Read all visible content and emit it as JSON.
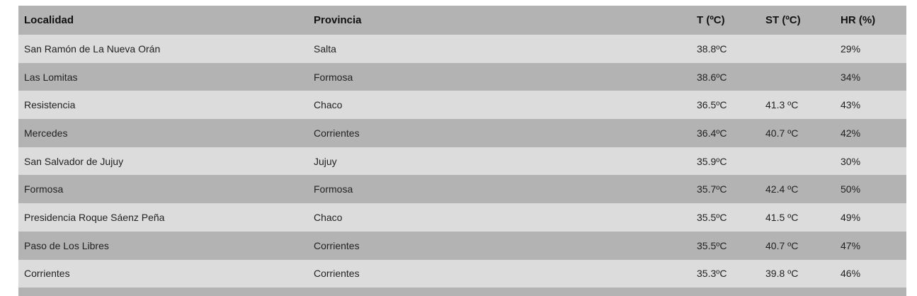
{
  "headers": [
    "Localidad",
    "Provincia",
    "T (ºC)",
    "ST (ºC)",
    "HR (%)"
  ],
  "rows": [
    [
      "San Ramón de La Nueva Orán",
      "Salta",
      "38.8ºC",
      "",
      "29%"
    ],
    [
      "Las Lomitas",
      "Formosa",
      "38.6ºC",
      "",
      "34%"
    ],
    [
      "Resistencia",
      "Chaco",
      "36.5ºC",
      "41.3 ºC",
      "43%"
    ],
    [
      "Mercedes",
      "Corrientes",
      "36.4ºC",
      "40.7 ºC",
      "42%"
    ],
    [
      "San Salvador de Jujuy",
      "Jujuy",
      "35.9ºC",
      "",
      "30%"
    ],
    [
      "Formosa",
      "Formosa",
      "35.7ºC",
      "42.4 ºC",
      "50%"
    ],
    [
      "Presidencia Roque Sáenz Peña",
      "Chaco",
      "35.5ºC",
      "41.5 ºC",
      "49%"
    ],
    [
      "Paso de Los Libres",
      "Corrientes",
      "35.5ºC",
      "40.7 ºC",
      "47%"
    ],
    [
      "Corrientes",
      "Corrientes",
      "35.3ºC",
      "39.8 ºC",
      "46%"
    ]
  ],
  "colors": {
    "header_bg": "#b3b3b3",
    "row_light": "#dcdcdc",
    "row_dark": "#b3b3b3"
  }
}
